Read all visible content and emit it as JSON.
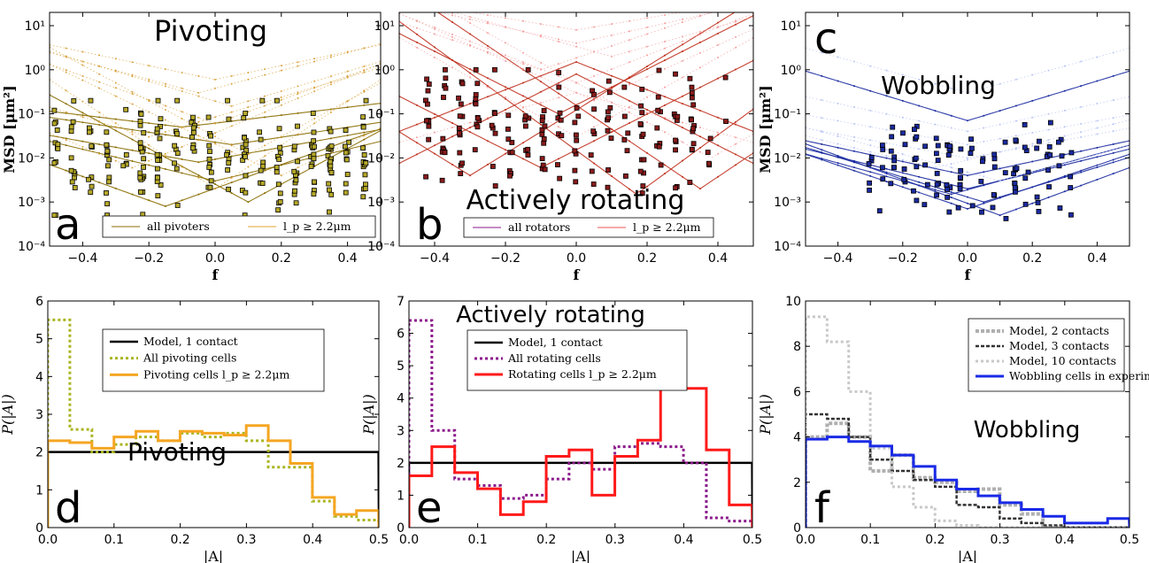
{
  "chart_data": [
    {
      "panel": "a",
      "type": "scatter",
      "title": "Pivoting",
      "xlabel": "f",
      "ylabel": "MSD [μm²]",
      "yscale": "log",
      "xlim": [
        -0.5,
        0.5
      ],
      "ylim": [
        0.0001,
        20
      ],
      "xticks": [
        "−0.4",
        "−0.2",
        "0.0",
        "0.2",
        "0.4"
      ],
      "yticks": [
        "10⁻⁴",
        "10⁻³",
        "10⁻²",
        "10⁻¹",
        "10⁰",
        "10¹"
      ],
      "legend": [
        "all pivoters",
        "l_p ≥ 2.2μm"
      ],
      "legend_position": "bottom",
      "colors": {
        "faint": "#d9a441",
        "strong": "#8a6d00",
        "marker": "#b5a828"
      },
      "seed": 11,
      "curves": [
        {
          "x0": -0.15,
          "y0": 0.0008,
          "k": 0.6,
          "strong": true
        },
        {
          "x0": 0.1,
          "y0": 0.001,
          "k": 0.9,
          "strong": true
        },
        {
          "x0": 0.0,
          "y0": 0.003,
          "k": 0.4,
          "strong": true
        },
        {
          "x0": -0.05,
          "y0": 0.008,
          "k": 0.3,
          "strong": true
        },
        {
          "x0": 0.05,
          "y0": 0.02,
          "k": 0.25,
          "strong": true
        },
        {
          "x0": -0.1,
          "y0": 0.05,
          "k": 0.2,
          "strong": true
        },
        {
          "x0": 0.0,
          "y0": 0.002,
          "k": 1.1,
          "strong": false
        },
        {
          "x0": 0.2,
          "y0": 0.004,
          "k": 0.8,
          "strong": false
        },
        {
          "x0": -0.25,
          "y0": 0.006,
          "k": 0.7,
          "strong": false
        },
        {
          "x0": 0.0,
          "y0": 0.06,
          "k": 0.6,
          "strong": false
        },
        {
          "x0": 0.05,
          "y0": 0.15,
          "k": 0.5,
          "strong": false
        },
        {
          "x0": -0.05,
          "y0": 0.3,
          "k": 0.45,
          "strong": false
        },
        {
          "x0": 0.0,
          "y0": 0.6,
          "k": 0.35,
          "strong": false
        },
        {
          "x0": 0.1,
          "y0": 0.012,
          "k": 0.9,
          "strong": false
        },
        {
          "x0": -0.2,
          "y0": 0.03,
          "k": 0.5,
          "strong": false
        }
      ],
      "points": {
        "n": 240,
        "xmin": -0.48,
        "xmax": 0.45,
        "logmin": -3.3,
        "logmax": -0.7,
        "size": 5
      }
    },
    {
      "panel": "b",
      "type": "scatter",
      "title": "Actively rotating",
      "xlabel": "f",
      "ylabel": "",
      "yscale": "log",
      "xlim": [
        -0.5,
        0.5
      ],
      "ylim": [
        0.0001,
        20
      ],
      "xticks": [
        "−0.4",
        "−0.2",
        "0.0",
        "0.2",
        "0.4"
      ],
      "yticks": [
        "10⁻⁴",
        "10⁻³",
        "10⁻²",
        "10⁻¹",
        "10⁰",
        "10¹"
      ],
      "legend": [
        "all rotators",
        "l_p ≥ 2.2μm"
      ],
      "legend_position": "bottom",
      "colors": {
        "faint": "#f4a0a0",
        "strong": "#c0301e",
        "marker": "#8a1a1a"
      },
      "seed": 23,
      "curves": [
        {
          "x0": -0.3,
          "y0": 0.004,
          "k": 1.1,
          "strong": true
        },
        {
          "x0": 0.17,
          "y0": 0.0015,
          "k": 1.3,
          "strong": true
        },
        {
          "x0": 0.35,
          "y0": 0.002,
          "k": 1.2,
          "strong": true
        },
        {
          "x0": -0.1,
          "y0": 0.006,
          "k": 0.9,
          "strong": true
        },
        {
          "x0": 0.0,
          "y0": 0.8,
          "k": -0.9,
          "strong": true
        },
        {
          "x0": 0.0,
          "y0": 1.5,
          "k": -0.7,
          "strong": true
        },
        {
          "x0": 0.0,
          "y0": 0.3,
          "k": -0.5,
          "strong": false
        },
        {
          "x0": -0.05,
          "y0": 0.1,
          "k": 0.9,
          "strong": true
        },
        {
          "x0": 0.05,
          "y0": 0.2,
          "k": 0.8,
          "strong": false
        },
        {
          "x0": 0.0,
          "y0": 0.5,
          "k": 0.7,
          "strong": false
        },
        {
          "x0": -0.1,
          "y0": 1.0,
          "k": 0.6,
          "strong": false
        },
        {
          "x0": 0.1,
          "y0": 2.0,
          "k": 0.5,
          "strong": false
        },
        {
          "x0": 0.0,
          "y0": 4.0,
          "k": 0.4,
          "strong": false
        },
        {
          "x0": 0.0,
          "y0": 8.0,
          "k": 0.3,
          "strong": false
        },
        {
          "x0": 0.0,
          "y0": 0.03,
          "k": 1.0,
          "strong": false
        },
        {
          "x0": 0.38,
          "y0": 0.01,
          "k": 1.0,
          "strong": false
        }
      ],
      "points": {
        "n": 180,
        "xmin": -0.42,
        "xmax": 0.42,
        "logmin": -2.8,
        "logmax": 0.0,
        "size": 5
      }
    },
    {
      "panel": "c",
      "type": "scatter",
      "title": "Wobbling",
      "xlabel": "f",
      "ylabel": "MSD [μm²]",
      "yscale": "log",
      "xlim": [
        -0.5,
        0.5
      ],
      "ylim": [
        0.0001,
        20
      ],
      "xticks": [
        "−0.4",
        "−0.2",
        "0.0",
        "0.2",
        "0.4"
      ],
      "yticks": [
        "10⁻⁴",
        "10⁻³",
        "10⁻²",
        "10⁻¹",
        "10⁰",
        "10¹"
      ],
      "legend": [],
      "legend_position": "",
      "colors": {
        "faint": "#b8c4f4",
        "strong": "#1a2aa0",
        "marker": "#1a2aa0"
      },
      "seed": 37,
      "curves": [
        {
          "x0": 0.0,
          "y0": 0.07,
          "k": 0.5,
          "strong": true
        },
        {
          "x0": 0.0,
          "y0": 0.002,
          "k": 0.4,
          "strong": true
        },
        {
          "x0": 0.05,
          "y0": 0.001,
          "k": 0.5,
          "strong": true
        },
        {
          "x0": -0.05,
          "y0": 0.0015,
          "k": 0.45,
          "strong": true
        },
        {
          "x0": 0.0,
          "y0": 0.0007,
          "k": 0.55,
          "strong": true
        },
        {
          "x0": 0.0,
          "y0": 0.004,
          "k": 0.35,
          "strong": true
        },
        {
          "x0": 0.1,
          "y0": 0.0005,
          "k": 0.6,
          "strong": true
        },
        {
          "x0": 0.0,
          "y0": 0.01,
          "k": 0.3,
          "strong": false
        },
        {
          "x0": 0.0,
          "y0": 0.02,
          "k": 0.3,
          "strong": false
        },
        {
          "x0": 0.0,
          "y0": 0.04,
          "k": 0.35,
          "strong": false
        },
        {
          "x0": 0.0,
          "y0": 0.3,
          "k": 0.45,
          "strong": false
        },
        {
          "x0": -0.1,
          "y0": 0.006,
          "k": 0.4,
          "strong": false
        },
        {
          "x0": 0.1,
          "y0": 0.003,
          "k": 0.45,
          "strong": false
        }
      ],
      "points": {
        "n": 120,
        "xmin": -0.3,
        "xmax": 0.32,
        "logmin": -3.4,
        "logmax": -1.2,
        "size": 5
      }
    },
    {
      "panel": "d",
      "type": "histogram",
      "title": "Pivoting",
      "xlabel": "|A|",
      "ylabel": "P(|A|)",
      "xlim": [
        0,
        0.5
      ],
      "ylim": [
        0,
        6
      ],
      "xticks": [
        "0.0",
        "0.1",
        "0.2",
        "0.3",
        "0.4",
        "0.5"
      ],
      "yticks": [
        "0",
        "1",
        "2",
        "3",
        "4",
        "5",
        "6"
      ],
      "bin_width": 0.0333,
      "series": [
        {
          "name": "Model, 1 contact",
          "style": "solid",
          "color": "#000000",
          "width": 2.5,
          "values": [
            2,
            2,
            2,
            2,
            2,
            2,
            2,
            2,
            2,
            2,
            2,
            2,
            2,
            2,
            2
          ]
        },
        {
          "name": "All pivoting cells",
          "style": "dotted",
          "color": "#aab520",
          "width": 3,
          "values": [
            5.5,
            2.6,
            2.0,
            2.2,
            2.4,
            2.3,
            2.5,
            2.4,
            2.5,
            2.3,
            1.6,
            1.6,
            0.7,
            0.3,
            0.2
          ]
        },
        {
          "name": "Pivoting cells l_p ≥ 2.2μm",
          "style": "solid",
          "color": "#f5a623",
          "width": 3,
          "values": [
            2.3,
            2.25,
            2.1,
            2.4,
            2.55,
            2.3,
            2.55,
            2.5,
            2.45,
            2.7,
            2.3,
            1.7,
            0.8,
            0.35,
            0.45
          ]
        }
      ]
    },
    {
      "panel": "e",
      "type": "histogram",
      "title": "Actively rotating",
      "xlabel": "|A|",
      "ylabel": "P(|A|)",
      "xlim": [
        0,
        0.5
      ],
      "ylim": [
        0,
        7
      ],
      "xticks": [
        "0.0",
        "0.1",
        "0.2",
        "0.3",
        "0.4",
        "0.5"
      ],
      "yticks": [
        "0",
        "1",
        "2",
        "3",
        "4",
        "5",
        "6",
        "7"
      ],
      "bin_width": 0.0333,
      "series": [
        {
          "name": "Model, 1 contact",
          "style": "solid",
          "color": "#000000",
          "width": 2.5,
          "values": [
            2,
            2,
            2,
            2,
            2,
            2,
            2,
            2,
            2,
            2,
            2,
            2,
            2,
            2,
            2
          ]
        },
        {
          "name": "All rotating cells",
          "style": "dotted",
          "color": "#8b1a8b",
          "width": 3,
          "values": [
            6.4,
            3.0,
            1.5,
            1.3,
            0.9,
            1.0,
            1.5,
            2.0,
            1.8,
            2.5,
            2.6,
            2.5,
            2.0,
            0.3,
            0.2
          ]
        },
        {
          "name": "Rotating cells l_p ≥ 2.2μm",
          "style": "solid",
          "color": "#ff1a1a",
          "width": 3,
          "values": [
            1.6,
            2.5,
            1.7,
            1.2,
            0.4,
            0.8,
            2.2,
            2.4,
            1.0,
            2.2,
            2.7,
            5.3,
            4.3,
            2.4,
            0.7
          ]
        }
      ]
    },
    {
      "panel": "f",
      "type": "histogram",
      "title": "Wobbling",
      "xlabel": "|A|",
      "ylabel": "P(|A|)",
      "xlim": [
        0,
        0.5
      ],
      "ylim": [
        0,
        10
      ],
      "xticks": [
        "0.0",
        "0.1",
        "0.2",
        "0.3",
        "0.4",
        "0.5"
      ],
      "yticks": [
        "0",
        "2",
        "4",
        "6",
        "8",
        "10"
      ],
      "bin_width": 0.0333,
      "series": [
        {
          "name": "Model, 2 contacts",
          "style": "dashed",
          "color": "#b0b0b0",
          "width": 4,
          "values": [
            4.0,
            4.6,
            4.0,
            2.5,
            3.2,
            2.2,
            2.0,
            1.6,
            1.7,
            1.0,
            0.6,
            0.0,
            0.0,
            0.0,
            0.0
          ]
        },
        {
          "name": "Model, 3 contacts",
          "style": "dashed",
          "color": "#333333",
          "width": 2.5,
          "values": [
            5.0,
            4.8,
            4.0,
            3.0,
            2.5,
            2.1,
            1.8,
            1.0,
            0.9,
            0.4,
            0.2,
            0.1,
            0.0,
            0.0,
            0.0
          ]
        },
        {
          "name": "Model, 10 contacts",
          "style": "dotted",
          "color": "#c8c8c8",
          "width": 3,
          "values": [
            9.3,
            8.2,
            6.0,
            3.5,
            1.8,
            0.9,
            0.3,
            0.1,
            0.0,
            0.0,
            0.0,
            0.0,
            0.0,
            0.0,
            0.0
          ]
        },
        {
          "name": "Wobbling cells in experiments",
          "style": "solid",
          "color": "#1a2ae6",
          "width": 3,
          "values": [
            3.9,
            4.0,
            3.8,
            3.6,
            3.2,
            2.7,
            2.1,
            1.7,
            1.4,
            1.1,
            0.8,
            0.5,
            0.2,
            0.2,
            0.4
          ]
        }
      ]
    }
  ],
  "panel_letters": [
    "a",
    "b",
    "c",
    "d",
    "e",
    "f"
  ],
  "annotations": {
    "panel_d_inset": "Pivoting",
    "panel_f_inset": "Wobbling"
  }
}
